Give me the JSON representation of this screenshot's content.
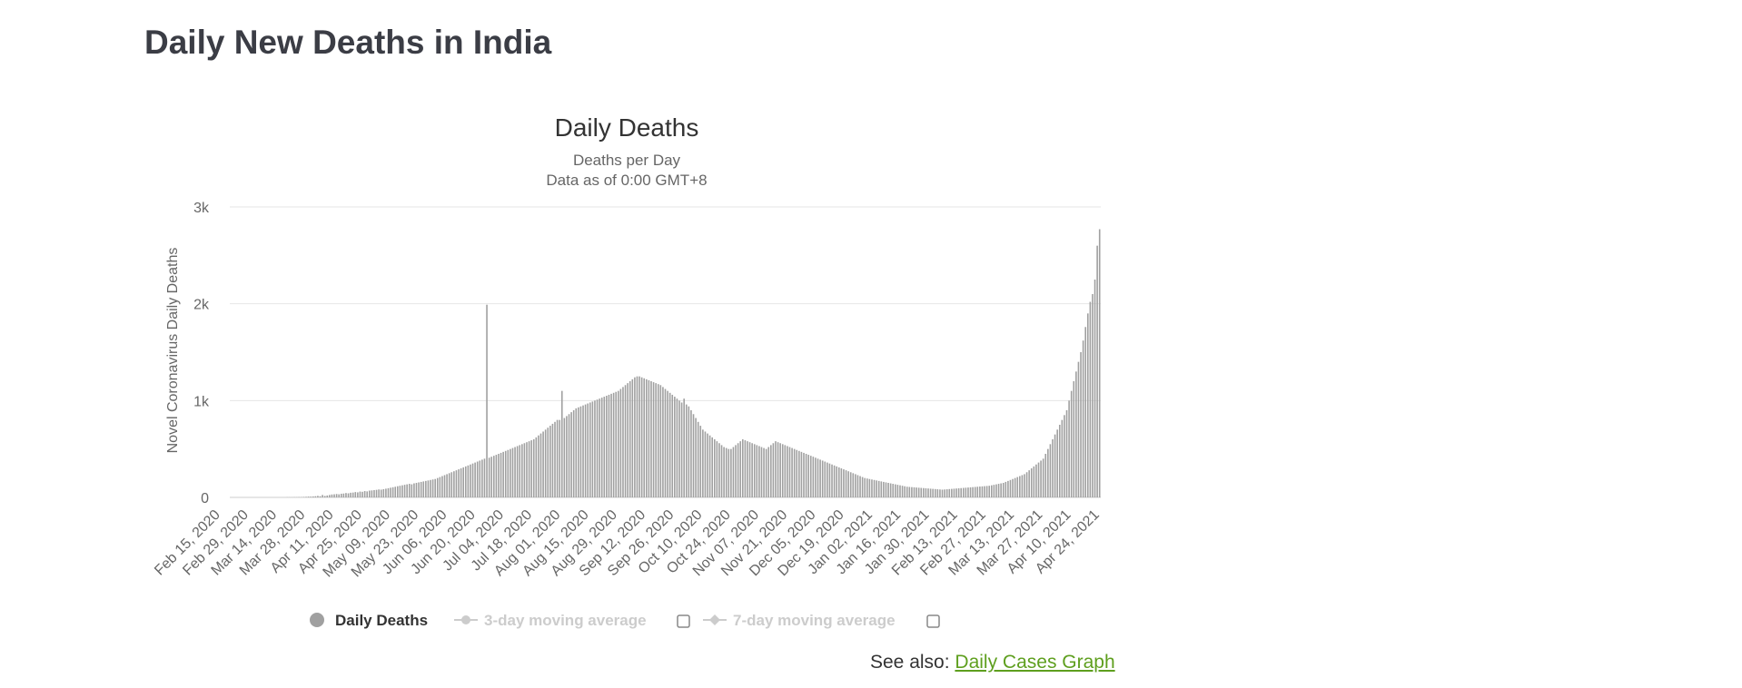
{
  "page": {
    "title": "Daily New Deaths in India",
    "see_also_prefix": "See also:",
    "see_also_link": "Daily Cases Graph"
  },
  "colors": {
    "bars": "#a0a0a0",
    "link": "#5e9f1e",
    "legend_inactive": "#cccccc"
  },
  "legend": [
    {
      "label": "Daily Deaths",
      "active": true,
      "checkbox": false
    },
    {
      "label": "3-day moving average",
      "active": false,
      "checkbox": true
    },
    {
      "label": "7-day moving average",
      "active": false,
      "checkbox": true
    }
  ],
  "chart_data": {
    "type": "bar",
    "title": "Daily Deaths",
    "subtitle": [
      "Deaths per Day",
      "Data as of 0:00 GMT+8"
    ],
    "ylabel": "Novel Coronavirus Daily Deaths",
    "xlabel": "",
    "ylim": [
      0,
      3000
    ],
    "yticks": [
      0,
      1000,
      2000,
      3000
    ],
    "ytick_labels": [
      "0",
      "1k",
      "2k",
      "3k"
    ],
    "x_start": "2020-02-15",
    "x_end": "2021-04-27",
    "xtick_labels": [
      "Feb 15, 2020",
      "Feb 29, 2020",
      "Mar 14, 2020",
      "Mar 28, 2020",
      "Apr 11, 2020",
      "Apr 25, 2020",
      "May 09, 2020",
      "May 23, 2020",
      "Jun 06, 2020",
      "Jun 20, 2020",
      "Jul 04, 2020",
      "Jul 18, 2020",
      "Aug 01, 2020",
      "Aug 15, 2020",
      "Aug 29, 2020",
      "Sep 12, 2020",
      "Sep 26, 2020",
      "Oct 10, 2020",
      "Oct 24, 2020",
      "Nov 07, 2020",
      "Nov 21, 2020",
      "Dec 05, 2020",
      "Dec 19, 2020",
      "Jan 02, 2021",
      "Jan 16, 2021",
      "Jan 30, 2021",
      "Feb 13, 2021",
      "Feb 27, 2021",
      "Mar 13, 2021",
      "Mar 27, 2021",
      "Apr 10, 2021",
      "Apr 24, 2021"
    ],
    "grid": true,
    "legend_position": "bottom",
    "series": [
      {
        "name": "Daily Deaths",
        "values": [
          0,
          0,
          0,
          0,
          0,
          0,
          0,
          0,
          0,
          0,
          0,
          0,
          0,
          0,
          0,
          0,
          0,
          0,
          0,
          0,
          0,
          0,
          0,
          0,
          1,
          1,
          1,
          2,
          2,
          3,
          3,
          5,
          6,
          8,
          8,
          10,
          12,
          16,
          12,
          25,
          15,
          20,
          25,
          30,
          32,
          35,
          32,
          38,
          40,
          45,
          42,
          48,
          50,
          55,
          52,
          60,
          58,
          65,
          62,
          70,
          72,
          75,
          78,
          82,
          80,
          85,
          90,
          95,
          100,
          105,
          110,
          115,
          120,
          125,
          130,
          135,
          140,
          135,
          145,
          150,
          155,
          160,
          165,
          170,
          175,
          180,
          185,
          190,
          200,
          210,
          220,
          230,
          240,
          250,
          260,
          270,
          280,
          290,
          300,
          310,
          320,
          330,
          340,
          350,
          360,
          370,
          380,
          390,
          400,
          1990,
          410,
          420,
          430,
          440,
          450,
          460,
          470,
          480,
          490,
          500,
          510,
          520,
          530,
          540,
          550,
          560,
          570,
          580,
          590,
          600,
          620,
          640,
          660,
          680,
          700,
          720,
          740,
          760,
          780,
          800,
          800,
          1100,
          820,
          840,
          860,
          880,
          900,
          920,
          930,
          940,
          950,
          960,
          970,
          980,
          990,
          1000,
          1010,
          1020,
          1030,
          1040,
          1050,
          1060,
          1070,
          1080,
          1090,
          1100,
          1120,
          1140,
          1160,
          1180,
          1200,
          1220,
          1240,
          1250,
          1250,
          1240,
          1230,
          1220,
          1210,
          1200,
          1190,
          1180,
          1170,
          1160,
          1140,
          1120,
          1100,
          1080,
          1060,
          1040,
          1020,
          1000,
          980,
          1020,
          960,
          940,
          900,
          860,
          820,
          780,
          740,
          700,
          680,
          660,
          640,
          620,
          600,
          580,
          560,
          540,
          520,
          510,
          500,
          500,
          520,
          540,
          560,
          580,
          600,
          590,
          580,
          570,
          560,
          550,
          540,
          530,
          520,
          510,
          500,
          520,
          540,
          560,
          580,
          570,
          560,
          550,
          540,
          530,
          520,
          510,
          500,
          490,
          480,
          470,
          460,
          450,
          440,
          430,
          420,
          410,
          400,
          390,
          380,
          370,
          360,
          350,
          340,
          330,
          320,
          310,
          300,
          290,
          280,
          270,
          260,
          250,
          240,
          230,
          220,
          210,
          200,
          195,
          190,
          185,
          180,
          175,
          170,
          165,
          160,
          155,
          150,
          145,
          140,
          135,
          130,
          125,
          120,
          115,
          110,
          108,
          106,
          104,
          102,
          100,
          98,
          96,
          94,
          92,
          90,
          88,
          86,
          84,
          82,
          80,
          82,
          84,
          86,
          88,
          90,
          92,
          94,
          96,
          98,
          100,
          102,
          104,
          106,
          108,
          110,
          112,
          114,
          116,
          118,
          120,
          125,
          130,
          135,
          140,
          145,
          150,
          160,
          170,
          180,
          190,
          200,
          210,
          220,
          230,
          240,
          260,
          280,
          300,
          320,
          340,
          360,
          380,
          400,
          450,
          500,
          550,
          600,
          650,
          700,
          750,
          800,
          850,
          900,
          1000,
          1100,
          1200,
          1300,
          1400,
          1500,
          1620,
          1760,
          1900,
          2020,
          2100,
          2250,
          2600,
          2770
        ]
      }
    ]
  }
}
